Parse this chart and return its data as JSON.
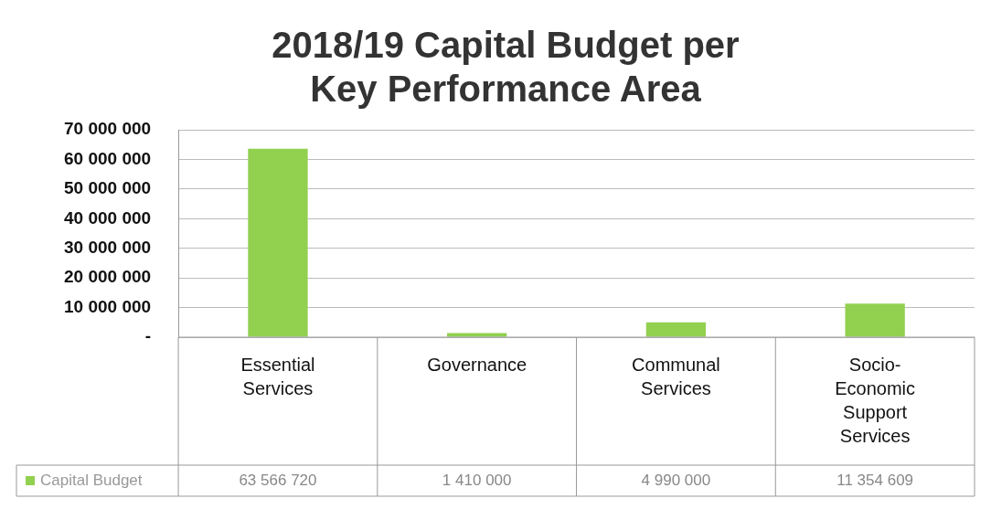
{
  "chart_data": {
    "type": "bar",
    "title": "2018/19 Capital Budget per Key Performance Area",
    "categories": [
      "Essential Services",
      "Governance",
      "Communal Services",
      "Socio-Economic Support Services"
    ],
    "series": [
      {
        "name": "Capital Budget",
        "color": "#92d050",
        "values": [
          63566720,
          1410000,
          4990000,
          11354609
        ]
      }
    ],
    "ylim": [
      0,
      70000000
    ],
    "yticks": [
      {
        "value": 0,
        "label": "-"
      },
      {
        "value": 10000000,
        "label": "10 000 000"
      },
      {
        "value": 20000000,
        "label": "20 000 000"
      },
      {
        "value": 30000000,
        "label": "30 000 000"
      },
      {
        "value": 40000000,
        "label": "40 000 000"
      },
      {
        "value": 50000000,
        "label": "50 000 000"
      },
      {
        "value": 60000000,
        "label": "60 000 000"
      },
      {
        "value": 70000000,
        "label": "70 000 000"
      }
    ],
    "grid": "y",
    "legend": "bottom left",
    "data_labels": true
  }
}
